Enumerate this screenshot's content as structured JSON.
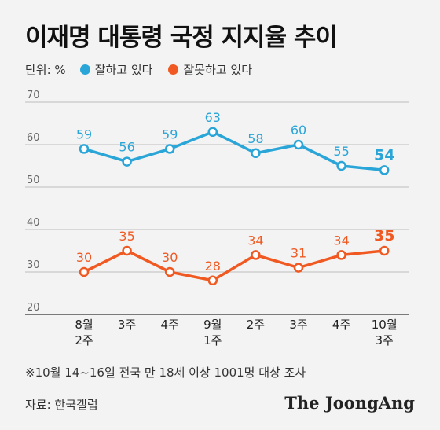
{
  "title": "이재명 대통령 국정 지지율 추이",
  "legend": {
    "unit": "단위: %",
    "items": [
      {
        "label": "잘하고 있다",
        "color": "#2aa5d8"
      },
      {
        "label": "잘못하고 있다",
        "color": "#f05a22"
      }
    ]
  },
  "note": "※10월 14~16일 전국 만 18세 이상 1001명 대상 조사",
  "source": "자료: 한국갤럽",
  "logo": "The JoongAng",
  "chart_data": {
    "type": "line",
    "categories": [
      [
        "8월",
        "2주"
      ],
      [
        "3주"
      ],
      [
        "4주"
      ],
      [
        "9월",
        "1주"
      ],
      [
        "2주"
      ],
      [
        "3주"
      ],
      [
        "4주"
      ],
      [
        "10월",
        "3주"
      ]
    ],
    "yticks": [
      70,
      60,
      50,
      40,
      30,
      20
    ],
    "series": [
      {
        "name": "잘하고 있다",
        "color": "#2aa5d8",
        "values": [
          59,
          56,
          59,
          63,
          58,
          60,
          55,
          54
        ]
      },
      {
        "name": "잘못하고 있다",
        "color": "#f05a22",
        "values": [
          30,
          35,
          30,
          28,
          34,
          31,
          34,
          35
        ]
      }
    ]
  }
}
